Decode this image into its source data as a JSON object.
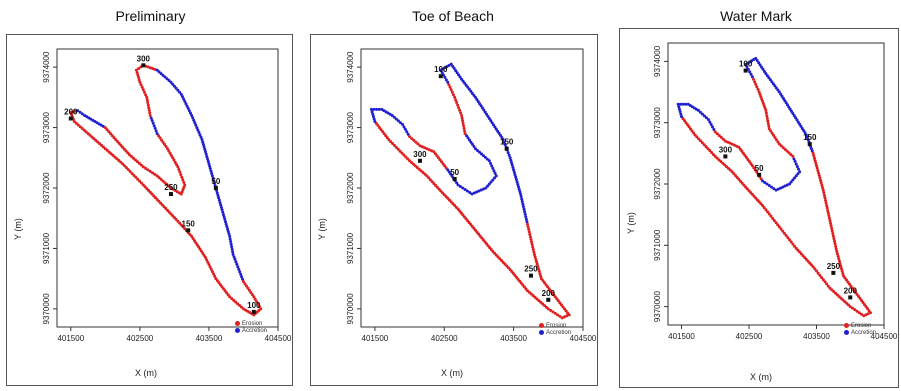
{
  "colors": {
    "erosion": "#e02020",
    "accretion": "#2020d0"
  },
  "chart_data": [
    {
      "type": "scatter",
      "title": "Preliminary",
      "xlabel": "X (m)",
      "ylabel": "Y (m)",
      "xlim": [
        401300,
        404500
      ],
      "ylim": [
        9369700,
        9374300
      ],
      "xticks": [
        401500,
        402500,
        403500,
        404500
      ],
      "yticks": [
        9370000,
        9371000,
        9372000,
        9373000,
        9374000
      ],
      "legend": {
        "placement": "bottom-right",
        "entries": [
          "Erosion",
          "Accretion"
        ]
      },
      "outline": [
        [
          402550,
          9374030
        ],
        [
          402750,
          9373950
        ],
        [
          402950,
          9373750
        ],
        [
          403100,
          9373550
        ],
        [
          403250,
          9373200
        ],
        [
          403400,
          9372800
        ],
        [
          403500,
          9372400
        ],
        [
          403600,
          9372000
        ],
        [
          403700,
          9371600
        ],
        [
          403800,
          9371200
        ],
        [
          403850,
          9370900
        ],
        [
          404000,
          9370450
        ],
        [
          404150,
          9370200
        ],
        [
          404250,
          9370000
        ],
        [
          404150,
          9369900
        ],
        [
          404000,
          9370000
        ],
        [
          403800,
          9370200
        ],
        [
          403600,
          9370500
        ],
        [
          403450,
          9370850
        ],
        [
          403250,
          9371200
        ],
        [
          403050,
          9371450
        ],
        [
          402800,
          9371750
        ],
        [
          402550,
          9372050
        ],
        [
          402250,
          9372400
        ],
        [
          402000,
          9372650
        ],
        [
          401750,
          9372900
        ],
        [
          401550,
          9373100
        ],
        [
          401500,
          9373250
        ],
        [
          401600,
          9373280
        ],
        [
          401700,
          9373200
        ],
        [
          401850,
          9373100
        ],
        [
          402000,
          9373000
        ],
        [
          402150,
          9372800
        ],
        [
          402350,
          9372550
        ],
        [
          402550,
          9372350
        ],
        [
          402750,
          9372200
        ],
        [
          402950,
          9372000
        ],
        [
          403100,
          9371900
        ],
        [
          403150,
          9372050
        ],
        [
          403050,
          9372350
        ],
        [
          402900,
          9372650
        ],
        [
          402750,
          9372900
        ],
        [
          402650,
          9373200
        ],
        [
          402600,
          9373500
        ],
        [
          402500,
          9373750
        ],
        [
          402450,
          9373950
        ],
        [
          402550,
          9374030
        ]
      ],
      "accretion_ranges": [
        [
          1,
          11
        ],
        [
          28,
          31
        ],
        [
          41,
          42
        ]
      ],
      "labels": [
        {
          "text": "300",
          "x": 402550,
          "y": 9374030
        },
        {
          "text": "200",
          "x": 401500,
          "y": 9373150
        },
        {
          "text": "250",
          "x": 402950,
          "y": 9371900
        },
        {
          "text": "50",
          "x": 403600,
          "y": 9372000
        },
        {
          "text": "150",
          "x": 403200,
          "y": 9371300
        },
        {
          "text": "100",
          "x": 404150,
          "y": 9369950
        }
      ]
    },
    {
      "type": "scatter",
      "title": "Toe of Beach",
      "xlabel": "X (m)",
      "ylabel": "Y (m)",
      "xlim": [
        401300,
        404500
      ],
      "ylim": [
        9369700,
        9374300
      ],
      "xticks": [
        401500,
        402500,
        403500,
        404500
      ],
      "yticks": [
        9370000,
        9371000,
        9372000,
        9373000,
        9374000
      ],
      "legend": {
        "placement": "bottom-right",
        "entries": [
          "Erosion",
          "Accretion"
        ]
      },
      "outline": [
        [
          402600,
          9374050
        ],
        [
          402750,
          9373800
        ],
        [
          402950,
          9373500
        ],
        [
          403150,
          9373150
        ],
        [
          403350,
          9372800
        ],
        [
          403450,
          9372500
        ],
        [
          403600,
          9371900
        ],
        [
          403700,
          9371400
        ],
        [
          403800,
          9370900
        ],
        [
          403900,
          9370500
        ],
        [
          404100,
          9370200
        ],
        [
          404300,
          9369900
        ],
        [
          404200,
          9369850
        ],
        [
          404000,
          9370000
        ],
        [
          403700,
          9370300
        ],
        [
          403450,
          9370650
        ],
        [
          403200,
          9370950
        ],
        [
          402950,
          9371300
        ],
        [
          402700,
          9371650
        ],
        [
          402450,
          9371950
        ],
        [
          402250,
          9372200
        ],
        [
          402000,
          9372450
        ],
        [
          401700,
          9372800
        ],
        [
          401500,
          9373100
        ],
        [
          401450,
          9373300
        ],
        [
          401600,
          9373300
        ],
        [
          401750,
          9373200
        ],
        [
          401900,
          9373050
        ],
        [
          402000,
          9372850
        ],
        [
          402150,
          9372700
        ],
        [
          402350,
          9372600
        ],
        [
          402550,
          9372300
        ],
        [
          402700,
          9372050
        ],
        [
          402900,
          9371900
        ],
        [
          403100,
          9372000
        ],
        [
          403250,
          9372200
        ],
        [
          403150,
          9372450
        ],
        [
          402950,
          9372650
        ],
        [
          402800,
          9372900
        ],
        [
          402750,
          9373200
        ],
        [
          402650,
          9373500
        ],
        [
          402550,
          9373750
        ],
        [
          402450,
          9373950
        ],
        [
          402600,
          9374050
        ]
      ],
      "accretion_ranges": [
        [
          0,
          7
        ],
        [
          23,
          28
        ],
        [
          31,
          38
        ],
        [
          41,
          43
        ]
      ],
      "labels": [
        {
          "text": "100",
          "x": 402450,
          "y": 9373850
        },
        {
          "text": "150",
          "x": 403400,
          "y": 9372650
        },
        {
          "text": "300",
          "x": 402150,
          "y": 9372450
        },
        {
          "text": "50",
          "x": 402650,
          "y": 9372150
        },
        {
          "text": "250",
          "x": 403750,
          "y": 9370550
        },
        {
          "text": "200",
          "x": 404000,
          "y": 9370150
        }
      ]
    },
    {
      "type": "scatter",
      "title": "Water Mark",
      "xlabel": "X (m)",
      "ylabel": "Y (m)",
      "xlim": [
        401300,
        404500
      ],
      "ylim": [
        9369700,
        9374300
      ],
      "xticks": [
        401500,
        402500,
        403500,
        404500
      ],
      "yticks": [
        9370000,
        9371000,
        9372000,
        9373000,
        9374000
      ],
      "legend": {
        "placement": "bottom-right",
        "entries": [
          "Erosion",
          "Accretion"
        ]
      },
      "outline": [
        [
          402600,
          9374050
        ],
        [
          402750,
          9373800
        ],
        [
          402950,
          9373500
        ],
        [
          403150,
          9373150
        ],
        [
          403350,
          9372800
        ],
        [
          403450,
          9372500
        ],
        [
          403600,
          9371900
        ],
        [
          403700,
          9371400
        ],
        [
          403800,
          9370900
        ],
        [
          403900,
          9370500
        ],
        [
          404100,
          9370200
        ],
        [
          404300,
          9369900
        ],
        [
          404200,
          9369850
        ],
        [
          404000,
          9370000
        ],
        [
          403700,
          9370300
        ],
        [
          403450,
          9370650
        ],
        [
          403200,
          9370950
        ],
        [
          402950,
          9371300
        ],
        [
          402700,
          9371650
        ],
        [
          402450,
          9371950
        ],
        [
          402250,
          9372200
        ],
        [
          402000,
          9372450
        ],
        [
          401700,
          9372800
        ],
        [
          401500,
          9373100
        ],
        [
          401450,
          9373300
        ],
        [
          401600,
          9373300
        ],
        [
          401750,
          9373200
        ],
        [
          401900,
          9373050
        ],
        [
          402000,
          9372850
        ],
        [
          402150,
          9372700
        ],
        [
          402350,
          9372600
        ],
        [
          402550,
          9372300
        ],
        [
          402700,
          9372050
        ],
        [
          402900,
          9371900
        ],
        [
          403100,
          9372000
        ],
        [
          403250,
          9372200
        ],
        [
          403150,
          9372450
        ],
        [
          402950,
          9372650
        ],
        [
          402800,
          9372900
        ],
        [
          402750,
          9373200
        ],
        [
          402650,
          9373500
        ],
        [
          402550,
          9373750
        ],
        [
          402450,
          9373950
        ],
        [
          402600,
          9374050
        ]
      ],
      "accretion_ranges": [
        [
          0,
          5
        ],
        [
          23,
          28
        ],
        [
          32,
          36
        ],
        [
          41,
          43
        ]
      ],
      "labels": [
        {
          "text": "100",
          "x": 402450,
          "y": 9373850
        },
        {
          "text": "150",
          "x": 403400,
          "y": 9372650
        },
        {
          "text": "300",
          "x": 402150,
          "y": 9372450
        },
        {
          "text": "50",
          "x": 402650,
          "y": 9372150
        },
        {
          "text": "250",
          "x": 403750,
          "y": 9370550
        },
        {
          "text": "200",
          "x": 404000,
          "y": 9370150
        }
      ]
    }
  ]
}
